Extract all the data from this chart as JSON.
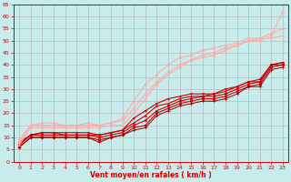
{
  "xlabel": "Vent moyen/en rafales ( km/h )",
  "bg_color": "#c8ecec",
  "grid_color": "#b0b0b0",
  "xlim": [
    -0.5,
    23.5
  ],
  "ylim": [
    0,
    65
  ],
  "yticks": [
    0,
    5,
    10,
    15,
    20,
    25,
    30,
    35,
    40,
    45,
    50,
    55,
    60,
    65
  ],
  "xticks": [
    0,
    1,
    2,
    3,
    4,
    5,
    6,
    7,
    8,
    9,
    10,
    11,
    12,
    13,
    14,
    15,
    16,
    17,
    18,
    19,
    20,
    21,
    22,
    23
  ],
  "series": [
    {
      "x": [
        0,
        1,
        2,
        3,
        4,
        5,
        6,
        7,
        8,
        9,
        10,
        11,
        12,
        13,
        14,
        15,
        16,
        17,
        18,
        19,
        20,
        21,
        22,
        23
      ],
      "y": [
        6,
        10,
        10,
        10,
        10,
        10,
        10,
        9,
        10,
        11,
        14,
        15,
        20,
        22,
        24,
        25,
        26,
        26,
        27,
        29,
        31,
        32,
        39,
        40
      ],
      "color": "#cc0000",
      "marker": "D",
      "markersize": 1.5,
      "linewidth": 0.8
    },
    {
      "x": [
        0,
        1,
        2,
        3,
        4,
        5,
        6,
        7,
        8,
        9,
        10,
        11,
        12,
        13,
        14,
        15,
        16,
        17,
        18,
        19,
        20,
        21,
        22,
        23
      ],
      "y": [
        7,
        11,
        11,
        11,
        11,
        11,
        11,
        10,
        11,
        12,
        15,
        17,
        21,
        23,
        25,
        26,
        27,
        27,
        28,
        30,
        32,
        33,
        40,
        40
      ],
      "color": "#cc0000",
      "marker": "s",
      "markersize": 1.5,
      "linewidth": 0.8
    },
    {
      "x": [
        0,
        1,
        2,
        3,
        4,
        5,
        6,
        7,
        8,
        9,
        10,
        11,
        12,
        13,
        14,
        15,
        16,
        17,
        18,
        19,
        20,
        21,
        22,
        23
      ],
      "y": [
        7,
        11,
        12,
        12,
        11,
        11,
        11,
        11,
        12,
        13,
        16,
        19,
        23,
        24,
        26,
        27,
        27,
        28,
        29,
        31,
        33,
        33,
        40,
        41
      ],
      "color": "#cc0000",
      "marker": "^",
      "markersize": 1.5,
      "linewidth": 0.8
    },
    {
      "x": [
        0,
        1,
        2,
        3,
        4,
        5,
        6,
        7,
        8,
        9,
        10,
        11,
        12,
        13,
        14,
        15,
        16,
        17,
        18,
        19,
        20,
        21,
        22,
        23
      ],
      "y": [
        8,
        11,
        12,
        12,
        12,
        12,
        12,
        11,
        12,
        13,
        18,
        21,
        24,
        26,
        27,
        28,
        28,
        28,
        30,
        31,
        33,
        34,
        40,
        41
      ],
      "color": "#cc0000",
      "marker": "v",
      "markersize": 1.5,
      "linewidth": 0.8
    },
    {
      "x": [
        0,
        1,
        2,
        3,
        4,
        5,
        6,
        7,
        8,
        9,
        10,
        11,
        12,
        13,
        14,
        15,
        16,
        17,
        18,
        19,
        20,
        21,
        22,
        23
      ],
      "y": [
        6,
        10,
        10,
        10,
        10,
        10,
        10,
        8,
        10,
        11,
        13,
        14,
        19,
        21,
        23,
        24,
        25,
        25,
        26,
        28,
        31,
        31,
        38,
        39
      ],
      "color": "#880000",
      "marker": "+",
      "markersize": 2.5,
      "linewidth": 0.7
    },
    {
      "x": [
        0,
        1,
        2,
        3,
        4,
        5,
        6,
        7,
        8,
        9,
        10,
        11,
        12,
        13,
        14,
        15,
        16,
        17,
        18,
        19,
        20,
        21,
        22,
        23
      ],
      "y": [
        8,
        15,
        15,
        15,
        15,
        15,
        15,
        15,
        16,
        17,
        22,
        28,
        33,
        37,
        40,
        42,
        44,
        45,
        47,
        48,
        50,
        50,
        52,
        62
      ],
      "color": "#ffaaaa",
      "marker": "D",
      "markersize": 1.5,
      "linewidth": 0.8
    },
    {
      "x": [
        0,
        1,
        2,
        3,
        4,
        5,
        6,
        7,
        8,
        9,
        10,
        11,
        12,
        13,
        14,
        15,
        16,
        17,
        18,
        19,
        20,
        21,
        22,
        23
      ],
      "y": [
        9,
        15,
        16,
        16,
        15,
        15,
        16,
        15,
        16,
        18,
        25,
        32,
        36,
        40,
        43,
        44,
        46,
        47,
        48,
        49,
        51,
        51,
        53,
        55
      ],
      "color": "#ffaaaa",
      "marker": "s",
      "markersize": 1.5,
      "linewidth": 0.8
    },
    {
      "x": [
        0,
        1,
        2,
        3,
        4,
        5,
        6,
        7,
        8,
        9,
        10,
        11,
        12,
        13,
        14,
        15,
        16,
        17,
        18,
        19,
        20,
        21,
        22,
        23
      ],
      "y": [
        7,
        14,
        14,
        14,
        14,
        14,
        14,
        14,
        15,
        15,
        20,
        26,
        32,
        36,
        39,
        42,
        43,
        44,
        46,
        48,
        50,
        51,
        51,
        52
      ],
      "color": "#ffaaaa",
      "marker": "^",
      "markersize": 1.5,
      "linewidth": 0.8
    }
  ]
}
